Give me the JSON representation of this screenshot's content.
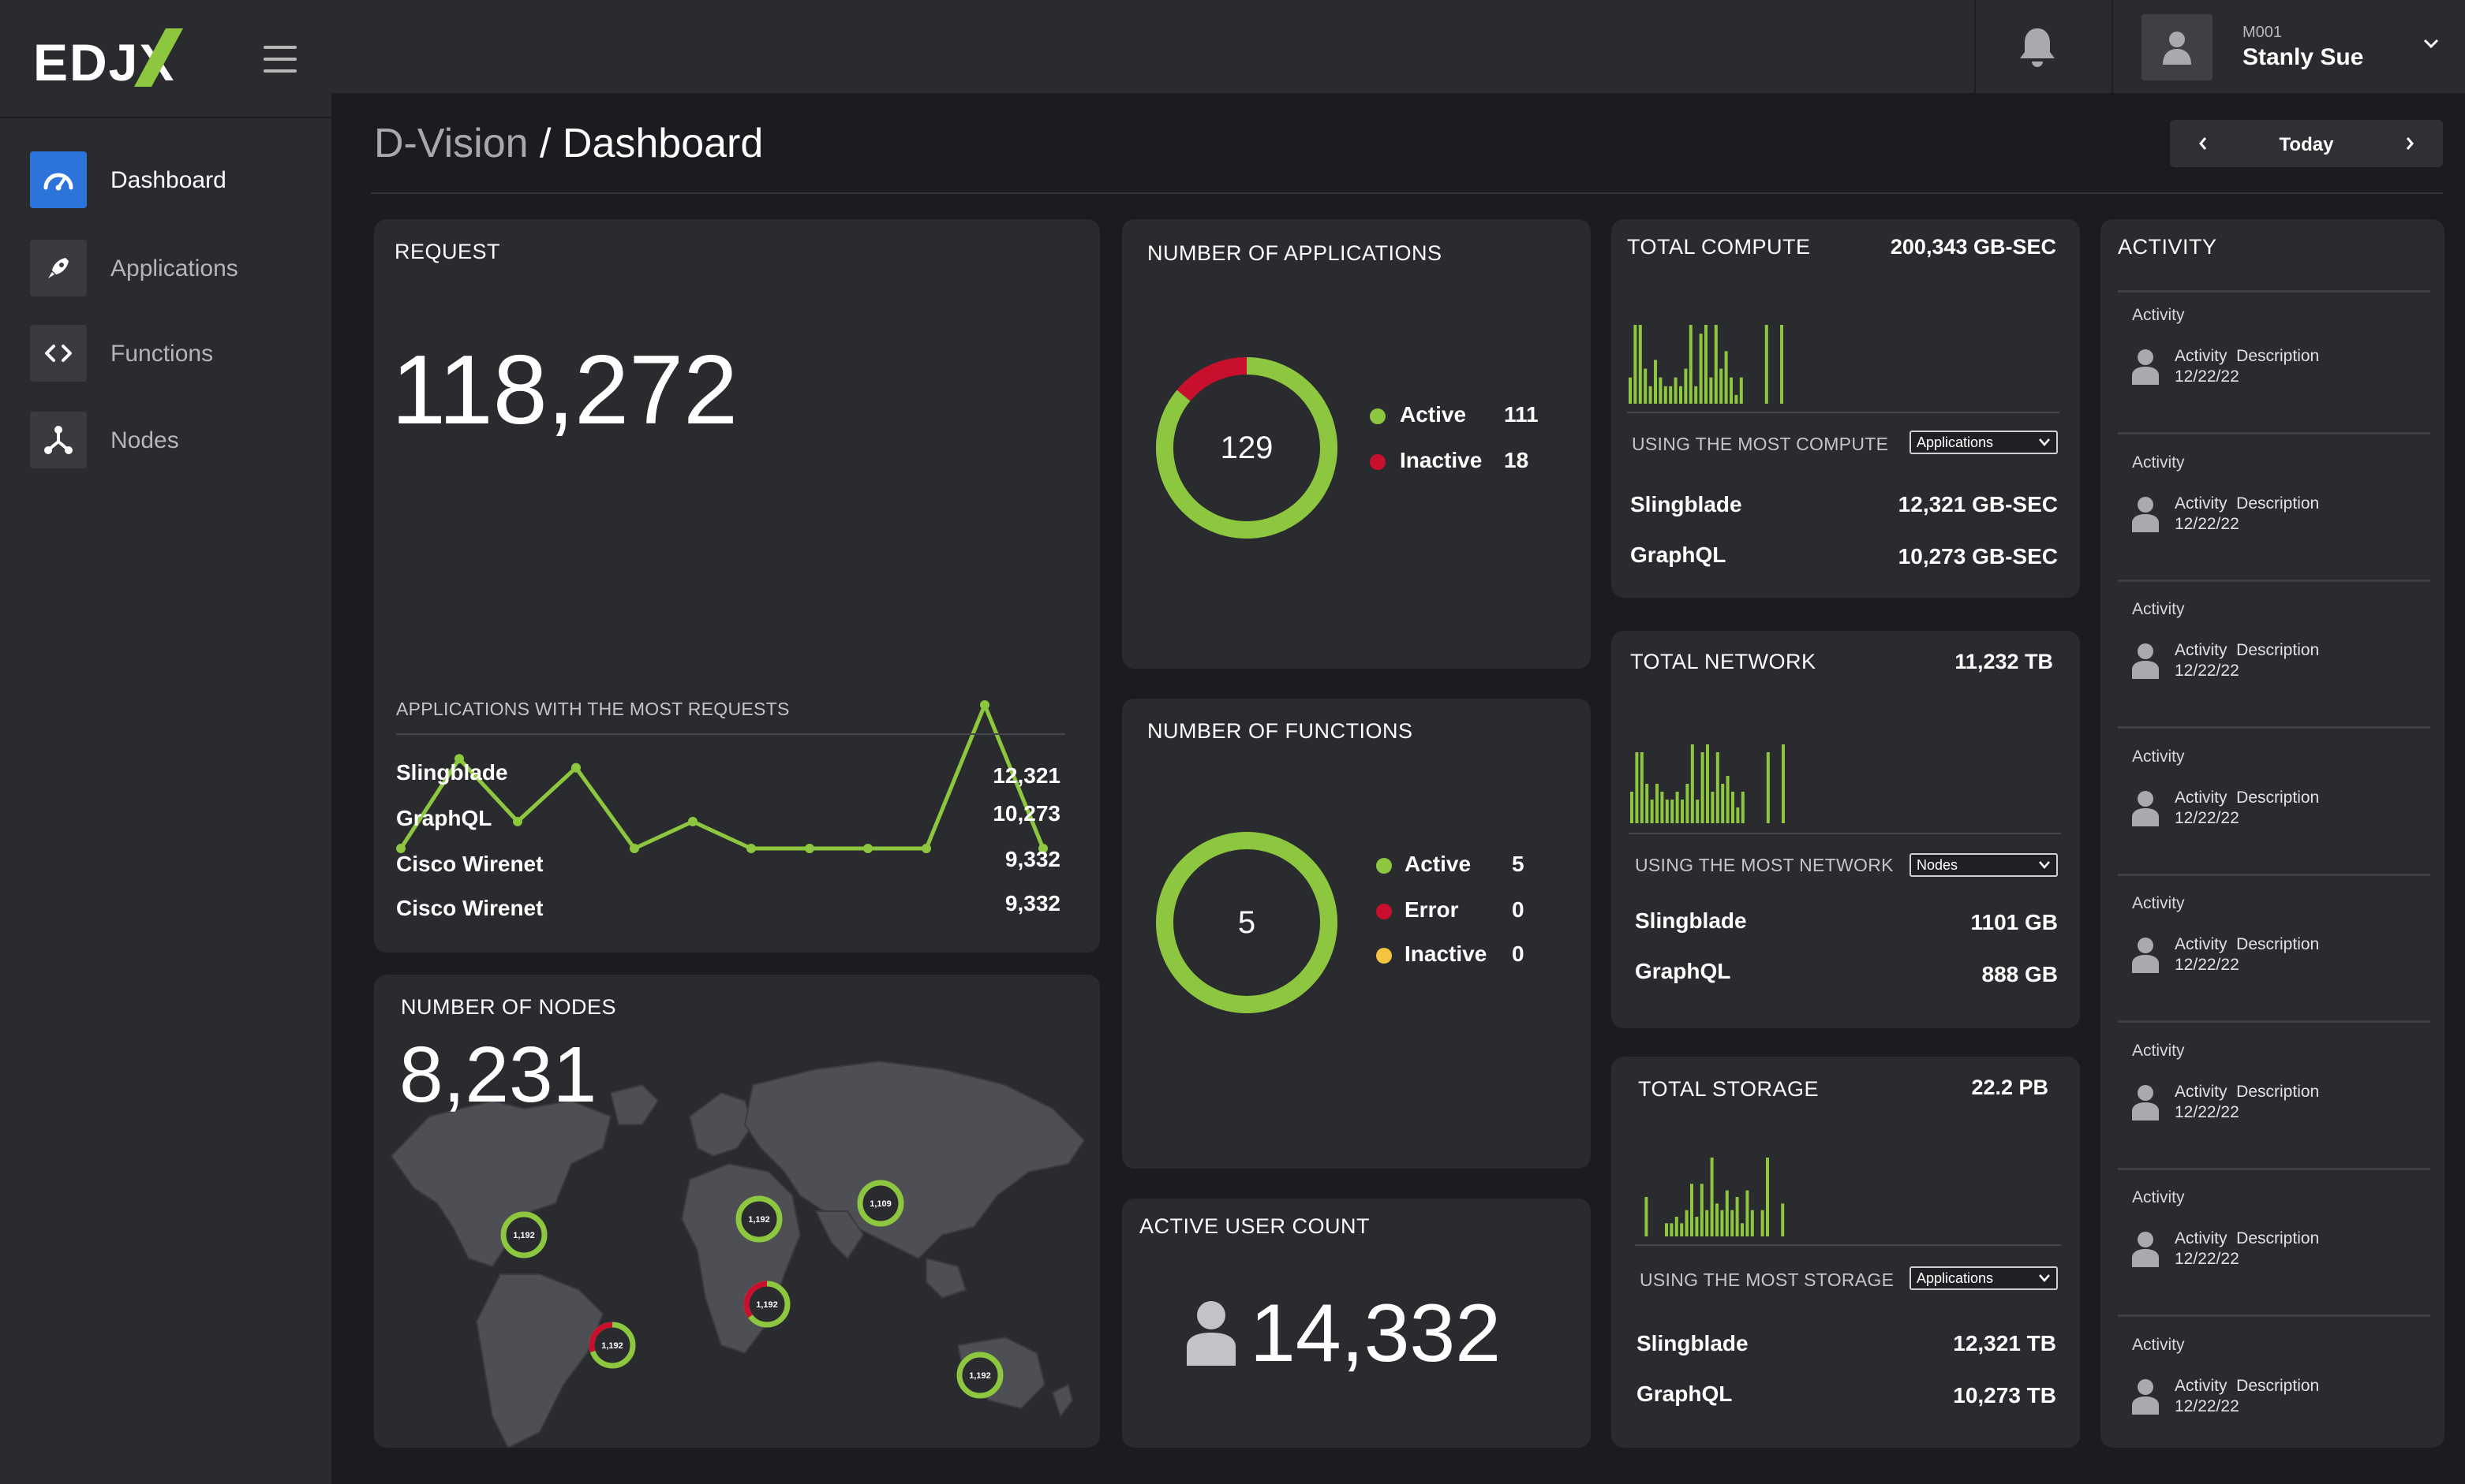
{
  "brand": {
    "logo_text": "EDJX"
  },
  "sidebar": {
    "items": [
      {
        "label": "Dashboard",
        "icon": "gauge-icon",
        "active": true
      },
      {
        "label": "Applications",
        "icon": "rocket-icon",
        "active": false
      },
      {
        "label": "Functions",
        "icon": "code-icon",
        "active": false
      },
      {
        "label": "Nodes",
        "icon": "nodes-icon",
        "active": false
      }
    ]
  },
  "header": {
    "user_id": "M001",
    "user_name": "Stanly Sue"
  },
  "breadcrumb": {
    "root": "D-Vision",
    "separator": " / ",
    "page": "Dashboard"
  },
  "date_nav": {
    "label": "Today"
  },
  "colors": {
    "accent_green": "#8dc63f",
    "error_red": "#c8102e",
    "warning_yellow": "#f5c342",
    "primary_blue": "#2d74da"
  },
  "request": {
    "title": "REQUEST",
    "total": "118,272",
    "chart_data": {
      "type": "line",
      "values": [
        2,
        12,
        5,
        11,
        2,
        5,
        2,
        2,
        2,
        2,
        18,
        2
      ]
    },
    "list_title": "APPLICATIONS WITH THE MOST REQUESTS",
    "rows": [
      {
        "name": "Slingblade",
        "value": "12,321"
      },
      {
        "name": "GraphQL",
        "value": "10,273"
      },
      {
        "name": "Cisco Wirenet",
        "value": "9,332"
      },
      {
        "name": "Cisco Wirenet",
        "value": "9,332"
      }
    ]
  },
  "nodes": {
    "title": "NUMBER OF NODES",
    "total": "8,231",
    "markers": [
      {
        "label": "1,192",
        "error_fraction": 0
      },
      {
        "label": "1,192",
        "error_fraction": 0
      },
      {
        "label": "1,109",
        "error_fraction": 0
      },
      {
        "label": "1,192",
        "error_fraction": 0.35
      },
      {
        "label": "1,192",
        "error_fraction": 0.3
      },
      {
        "label": "1,192",
        "error_fraction": 0
      }
    ]
  },
  "applications": {
    "title": "NUMBER OF APPLICATIONS",
    "total": "129",
    "chart_data": {
      "type": "pie",
      "categories": [
        "Active",
        "Inactive"
      ],
      "values": [
        111,
        18
      ]
    },
    "legend": [
      {
        "label": "Active",
        "value": "111"
      },
      {
        "label": "Inactive",
        "value": "18"
      }
    ]
  },
  "functions": {
    "title": "NUMBER OF FUNCTIONS",
    "total": "5",
    "chart_data": {
      "type": "pie",
      "categories": [
        "Active",
        "Error",
        "Inactive"
      ],
      "values": [
        5,
        0,
        0
      ]
    },
    "legend": [
      {
        "label": "Active",
        "value": "5"
      },
      {
        "label": "Error",
        "value": "0"
      },
      {
        "label": "Inactive",
        "value": "0"
      }
    ]
  },
  "active_users": {
    "title": "ACTIVE USER COUNT",
    "count": "14,332"
  },
  "compute": {
    "title": "TOTAL COMPUTE",
    "total": "200,343 GB-SEC",
    "chart_data": {
      "type": "bar",
      "values": [
        3,
        9,
        9,
        4,
        2,
        5,
        3,
        2,
        2,
        3,
        2,
        4,
        9,
        2,
        8,
        9,
        3,
        9,
        4,
        6,
        3,
        1,
        3,
        0,
        0,
        0,
        0,
        9,
        0,
        0,
        9
      ]
    },
    "using_label": "USING THE MOST COMPUTE",
    "select_value": "Applications",
    "rows": [
      {
        "name": "Slingblade",
        "value": "12,321 GB-SEC"
      },
      {
        "name": "GraphQL",
        "value": "10,273 GB-SEC"
      }
    ]
  },
  "network": {
    "title": "TOTAL NETWORK",
    "total": "11,232 TB",
    "chart_data": {
      "type": "bar",
      "values": [
        4,
        9,
        9,
        5,
        3,
        5,
        4,
        3,
        3,
        4,
        3,
        5,
        10,
        3,
        9,
        10,
        4,
        9,
        5,
        6,
        4,
        2,
        4,
        0,
        0,
        0,
        0,
        9,
        0,
        0,
        10
      ]
    },
    "using_label": "USING THE MOST NETWORK",
    "select_value": "Nodes",
    "rows": [
      {
        "name": "Slingblade",
        "value": "1101 GB"
      },
      {
        "name": "GraphQL",
        "value": "888 GB"
      }
    ]
  },
  "storage": {
    "title": "TOTAL STORAGE",
    "total": "22.2 PB",
    "chart_data": {
      "type": "bar",
      "values": [
        0,
        6,
        0,
        0,
        0,
        2,
        2,
        3,
        2,
        4,
        8,
        3,
        8,
        4,
        12,
        5,
        4,
        7,
        4,
        6,
        2,
        7,
        4,
        0,
        4,
        12,
        0,
        0,
        5
      ]
    },
    "using_label": "USING THE MOST STORAGE",
    "select_value": "Applications",
    "rows": [
      {
        "name": "Slingblade",
        "value": "12,321 TB"
      },
      {
        "name": "GraphQL",
        "value": "10,273 TB"
      }
    ]
  },
  "activity": {
    "title": "ACTIVITY",
    "items": [
      {
        "title": "Activity",
        "description": "Activity  Description",
        "date": "12/22/22"
      },
      {
        "title": "Activity",
        "description": "Activity  Description",
        "date": "12/22/22"
      },
      {
        "title": "Activity",
        "description": "Activity  Description",
        "date": "12/22/22"
      },
      {
        "title": "Activity",
        "description": "Activity  Description",
        "date": "12/22/22"
      },
      {
        "title": "Activity",
        "description": "Activity  Description",
        "date": "12/22/22"
      },
      {
        "title": "Activity",
        "description": "Activity  Description",
        "date": "12/22/22"
      },
      {
        "title": "Activity",
        "description": "Activity  Description",
        "date": "12/22/22"
      },
      {
        "title": "Activity",
        "description": "Activity  Description",
        "date": "12/22/22"
      }
    ]
  }
}
